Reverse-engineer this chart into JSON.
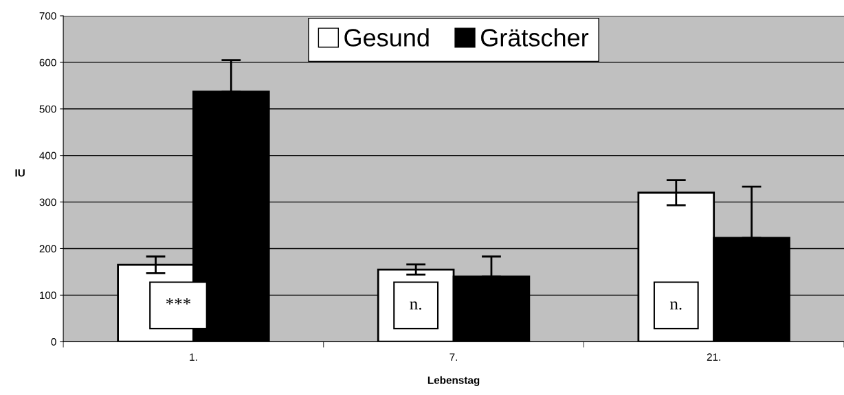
{
  "chart_data": {
    "type": "bar",
    "xlabel": "Lebenstag",
    "ylabel": "IU",
    "categories": [
      "1.",
      "7.",
      "21."
    ],
    "series": [
      {
        "name": "Gesund",
        "color": "#ffffff",
        "values": [
          165,
          155,
          320
        ],
        "errors": [
          18,
          11,
          27
        ]
      },
      {
        "name": "Grätscher",
        "color": "#000000",
        "values": [
          537,
          140,
          223
        ],
        "errors": [
          [
            537,
            605
          ],
          [
            140,
            183
          ],
          [
            223,
            333
          ]
        ]
      }
    ],
    "ylim": [
      0,
      700
    ],
    "yticks": [
      0,
      100,
      200,
      300,
      400,
      500,
      600,
      700
    ],
    "grid": "y",
    "legend": "top",
    "annotations": [
      "***",
      "n.",
      "n."
    ]
  }
}
